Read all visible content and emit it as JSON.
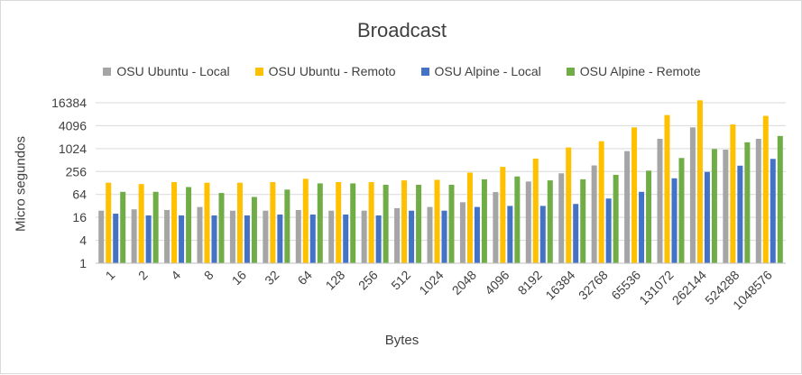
{
  "chart_data": {
    "type": "bar",
    "title": "Broadcast",
    "xlabel": "Bytes",
    "ylabel": "Micro segundos",
    "yscale": "log2",
    "ylim": [
      1,
      16384
    ],
    "yticks": [
      "1",
      "4",
      "16",
      "64",
      "256",
      "1024",
      "4096",
      "16384"
    ],
    "legend_position": "top",
    "grid": true,
    "categories": [
      "1",
      "2",
      "4",
      "8",
      "16",
      "32",
      "64",
      "128",
      "256",
      "512",
      "1024",
      "2048",
      "4096",
      "8192",
      "16384",
      "32768",
      "65536",
      "131072",
      "262144",
      "524288",
      "1048576"
    ],
    "series": [
      {
        "name": "OSU Ubuntu - Local",
        "color": "#a5a5a5",
        "values": [
          24,
          26,
          25,
          30,
          24,
          24,
          25,
          24,
          24,
          28,
          30,
          40,
          74,
          140,
          230,
          370,
          880,
          1850,
          3700,
          960,
          1850
        ]
      },
      {
        "name": "OSU Ubuntu - Remoto",
        "color": "#ffc000",
        "values": [
          130,
          120,
          135,
          130,
          130,
          135,
          165,
          135,
          135,
          150,
          155,
          240,
          340,
          560,
          1100,
          1600,
          3700,
          7800,
          19000,
          4400,
          7400
        ]
      },
      {
        "name": "OSU Alpine - Local",
        "color": "#4472c4",
        "values": [
          20,
          18,
          18,
          18,
          18,
          19,
          19,
          19,
          18,
          24,
          24,
          30,
          32,
          32,
          36,
          50,
          75,
          170,
          250,
          365,
          550
        ]
      },
      {
        "name": "OSU Alpine - Remote",
        "color": "#70ad47",
        "values": [
          75,
          75,
          100,
          70,
          55,
          86,
          125,
          125,
          115,
          115,
          115,
          160,
          190,
          150,
          160,
          210,
          270,
          580,
          1000,
          1500,
          2200
        ]
      }
    ]
  }
}
